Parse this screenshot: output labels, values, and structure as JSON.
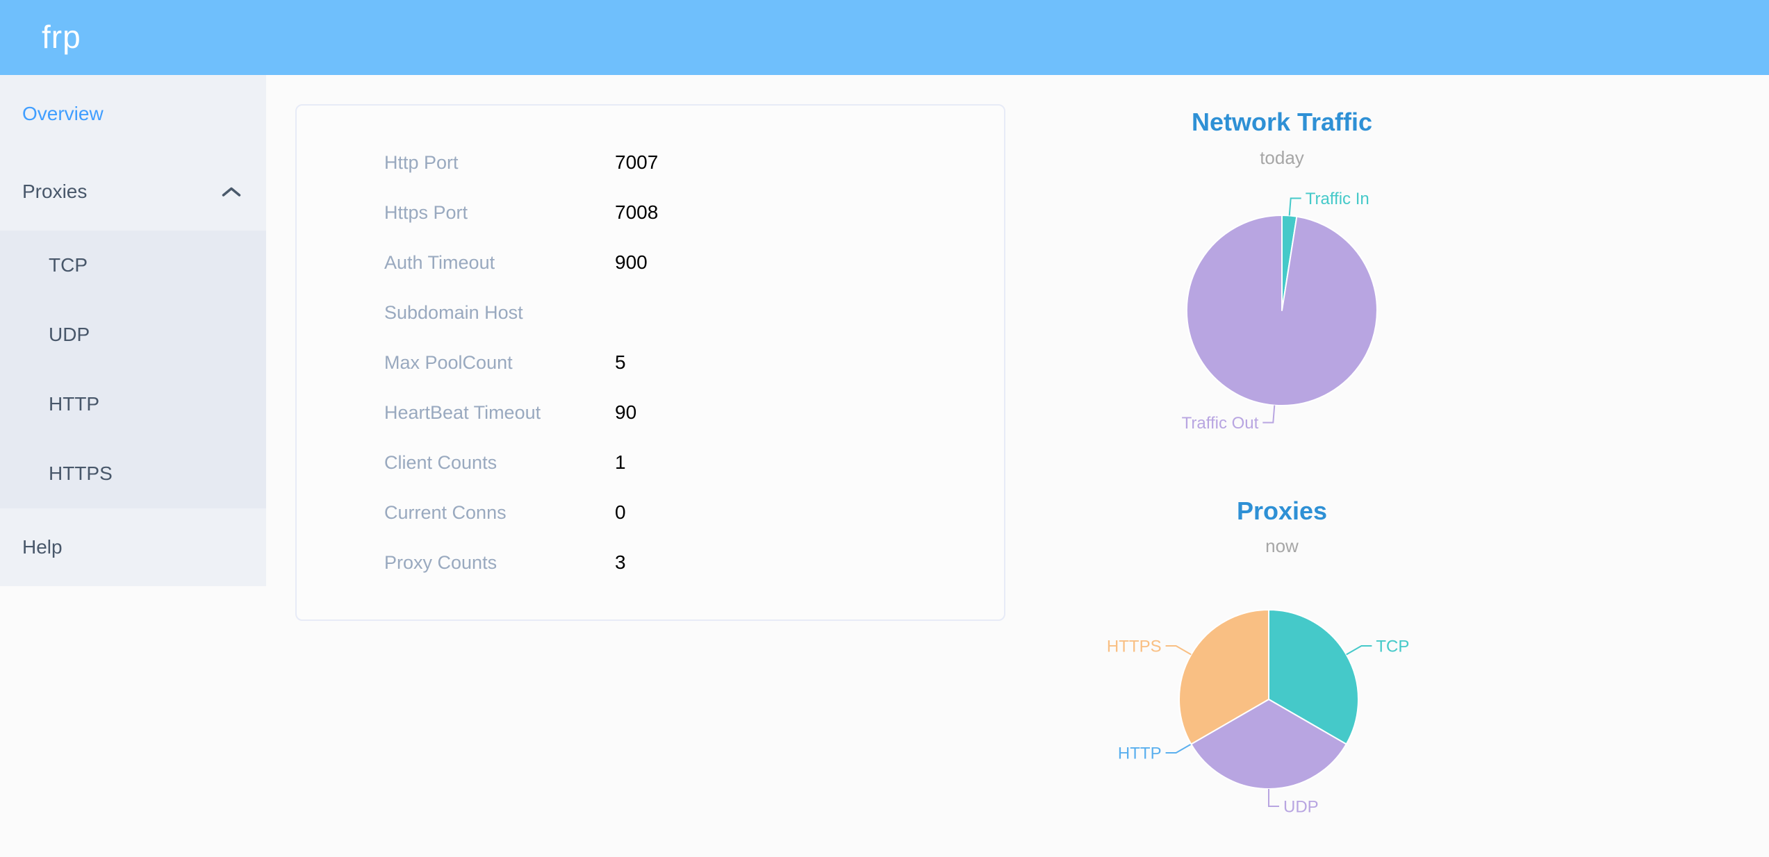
{
  "header": {
    "logo": "frp"
  },
  "sidebar": {
    "items": [
      {
        "id": "overview",
        "label": "Overview",
        "active": true
      },
      {
        "id": "proxies",
        "label": "Proxies",
        "expanded": true
      },
      {
        "id": "help",
        "label": "Help",
        "active": false
      }
    ],
    "proxies_children": [
      {
        "id": "tcp",
        "label": "TCP"
      },
      {
        "id": "udp",
        "label": "UDP"
      },
      {
        "id": "http",
        "label": "HTTP"
      },
      {
        "id": "https",
        "label": "HTTPS"
      }
    ]
  },
  "server_info": {
    "rows": [
      {
        "label": "Http Port",
        "value": "7007"
      },
      {
        "label": "Https Port",
        "value": "7008"
      },
      {
        "label": "Auth Timeout",
        "value": "900"
      },
      {
        "label": "Subdomain Host",
        "value": ""
      },
      {
        "label": "Max PoolCount",
        "value": "5"
      },
      {
        "label": "HeartBeat Timeout",
        "value": "90"
      },
      {
        "label": "Client Counts",
        "value": "1"
      },
      {
        "label": "Current Conns",
        "value": "0"
      },
      {
        "label": "Proxy Counts",
        "value": "3"
      }
    ]
  },
  "chart_data": [
    {
      "type": "pie",
      "title": "Network Traffic",
      "subtitle": "today",
      "legend_position": "none",
      "value_unit": "estimated_percent",
      "series": [
        {
          "name": "Traffic In",
          "value": 2.5,
          "color": "#45c9c9"
        },
        {
          "name": "Traffic Out",
          "value": 97.5,
          "color": "#b8a5e1"
        }
      ]
    },
    {
      "type": "pie",
      "title": "Proxies",
      "subtitle": "now",
      "legend_position": "none",
      "value_unit": "proxy_count",
      "series": [
        {
          "name": "TCP",
          "value": 1,
          "color": "#45c9c9"
        },
        {
          "name": "UDP",
          "value": 1,
          "color": "#b8a5e1"
        },
        {
          "name": "HTTP",
          "value": 0,
          "color": "#5aafee"
        },
        {
          "name": "HTTPS",
          "value": 1,
          "color": "#f9bf83"
        }
      ]
    }
  ],
  "colors": {
    "header_bg": "#6fbffc",
    "sidebar_bg": "#eef1f6",
    "submenu_bg": "#e6eaf2",
    "active_menu_text": "#409eff",
    "menu_text": "#48576a",
    "chart_title": "#2e90d5",
    "chart_subtitle": "#a6a6a6",
    "info_label": "#99a9bf",
    "info_value": "#000000"
  }
}
